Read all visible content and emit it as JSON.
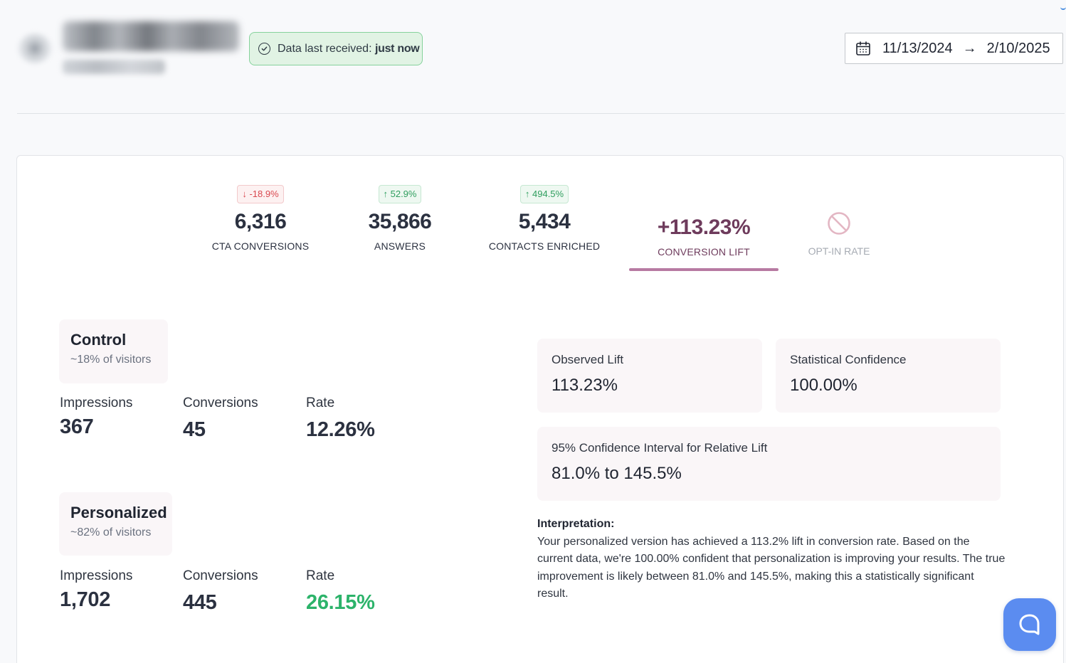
{
  "header": {
    "status_label": "Data last received:",
    "status_value": "just now",
    "date_start": "11/13/2024",
    "date_arrow": "→",
    "date_end": "2/10/2025"
  },
  "metrics": [
    {
      "badge": "↓ -18.9%",
      "value": "6,316",
      "label": "CTA CONVERSIONS"
    },
    {
      "badge": "↑ 52.9%",
      "value": "35,866",
      "label": "ANSWERS"
    },
    {
      "badge": "↑ 494.5%",
      "value": "5,434",
      "label": "CONTACTS ENRICHED"
    },
    {
      "value": "+113.23%",
      "label": "CONVERSION LIFT"
    },
    {
      "label": "OPT-IN RATE"
    }
  ],
  "control": {
    "name": "Control",
    "share": "~18% of visitors",
    "impressions_label": "Impressions",
    "impressions": "367",
    "conversions_label": "Conversions",
    "conversions": "45",
    "rate_label": "Rate",
    "rate": "12.26%"
  },
  "personalized": {
    "name": "Personalized",
    "share": "~82% of visitors",
    "impressions_label": "Impressions",
    "impressions": "1,702",
    "conversions_label": "Conversions",
    "conversions": "445",
    "rate_label": "Rate",
    "rate": "26.15%"
  },
  "analysis": {
    "observed_lift_label": "Observed Lift",
    "observed_lift": "113.23%",
    "confidence_label": "Statistical Confidence",
    "confidence": "100.00%",
    "interval_label": "95% Confidence Interval for Relative Lift",
    "interval": "81.0% to 145.5%",
    "interpretation_title": "Interpretation:",
    "interpretation_text": "Your personalized version has achieved a 113.2% lift in conversion rate. Based on the current data, we're 100.00% confident that personalization is improving your results. The true improvement is likely between 81.0% and 145.5%, making this a statistically significant result."
  },
  "colors": {
    "accent": "#6e3b5c",
    "tab_underline": "#b77aa2",
    "positive": "#2cb36a",
    "negative": "#d9484f",
    "help_button": "#5b8cf0"
  },
  "icons": [
    "check-circle-icon",
    "calendar-icon",
    "ban-icon",
    "chat-bubble-icon"
  ]
}
